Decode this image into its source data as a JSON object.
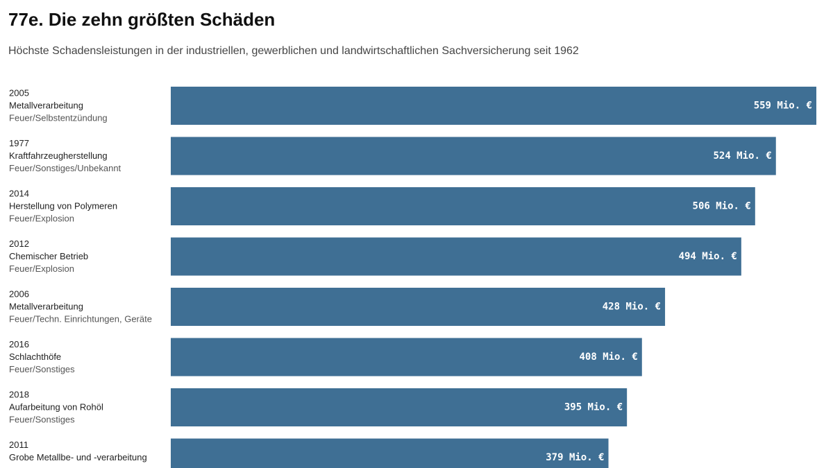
{
  "chart_data": {
    "type": "bar",
    "title": "77e. Die zehn größten Schäden",
    "subtitle": "Höchste Schadensleistungen in der industriellen, gewerblichen und landwirtschaftlichen Sachversicherung seit 1962",
    "categories": [
      "2005",
      "1977",
      "2014",
      "2012",
      "2006",
      "2016",
      "2018",
      "2011"
    ],
    "industries": [
      "Metallverarbeitung",
      "Kraftfahrzeugherstellung",
      "Herstellung von Polymeren",
      "Chemischer Betrieb",
      "Metallverarbeitung",
      "Schlachthöfe",
      "Aufarbeitung von Rohöl",
      "Grobe Metallbe- und -verarbeitung"
    ],
    "causes": [
      "Feuer/Selbstentzündung",
      "Feuer/Sonstiges/Unbekannt",
      "Feuer/Explosion",
      "Feuer/Explosion",
      "Feuer/Techn. Einrichtungen, Geräte",
      "Feuer/Sonstiges",
      "Feuer/Sonstiges",
      null
    ],
    "values": [
      559,
      524,
      506,
      494,
      428,
      408,
      395,
      379
    ],
    "value_labels": [
      "559 Mio. €",
      "524 Mio. €",
      "506 Mio. €",
      "494 Mio. €",
      "428 Mio. €",
      "408 Mio. €",
      "395 Mio. €",
      "379 Mio. €"
    ],
    "color": "#3f6f94",
    "orientation": "horizontal"
  }
}
